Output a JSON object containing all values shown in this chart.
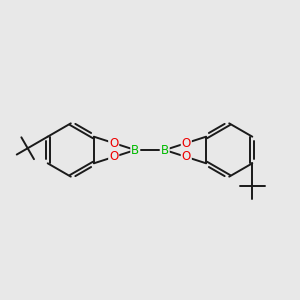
{
  "background_color": "#e8e8e8",
  "bond_color": "#1a1a1a",
  "bond_lw": 1.4,
  "dbo": 0.013,
  "B_color": "#00bb00",
  "O_color": "#ee0000",
  "font_size_atom": 8.5,
  "fig_width": 3.0,
  "fig_height": 3.0,
  "dpi": 100,
  "xlim": [
    -1.05,
    1.05
  ],
  "ylim": [
    -0.55,
    0.55
  ]
}
